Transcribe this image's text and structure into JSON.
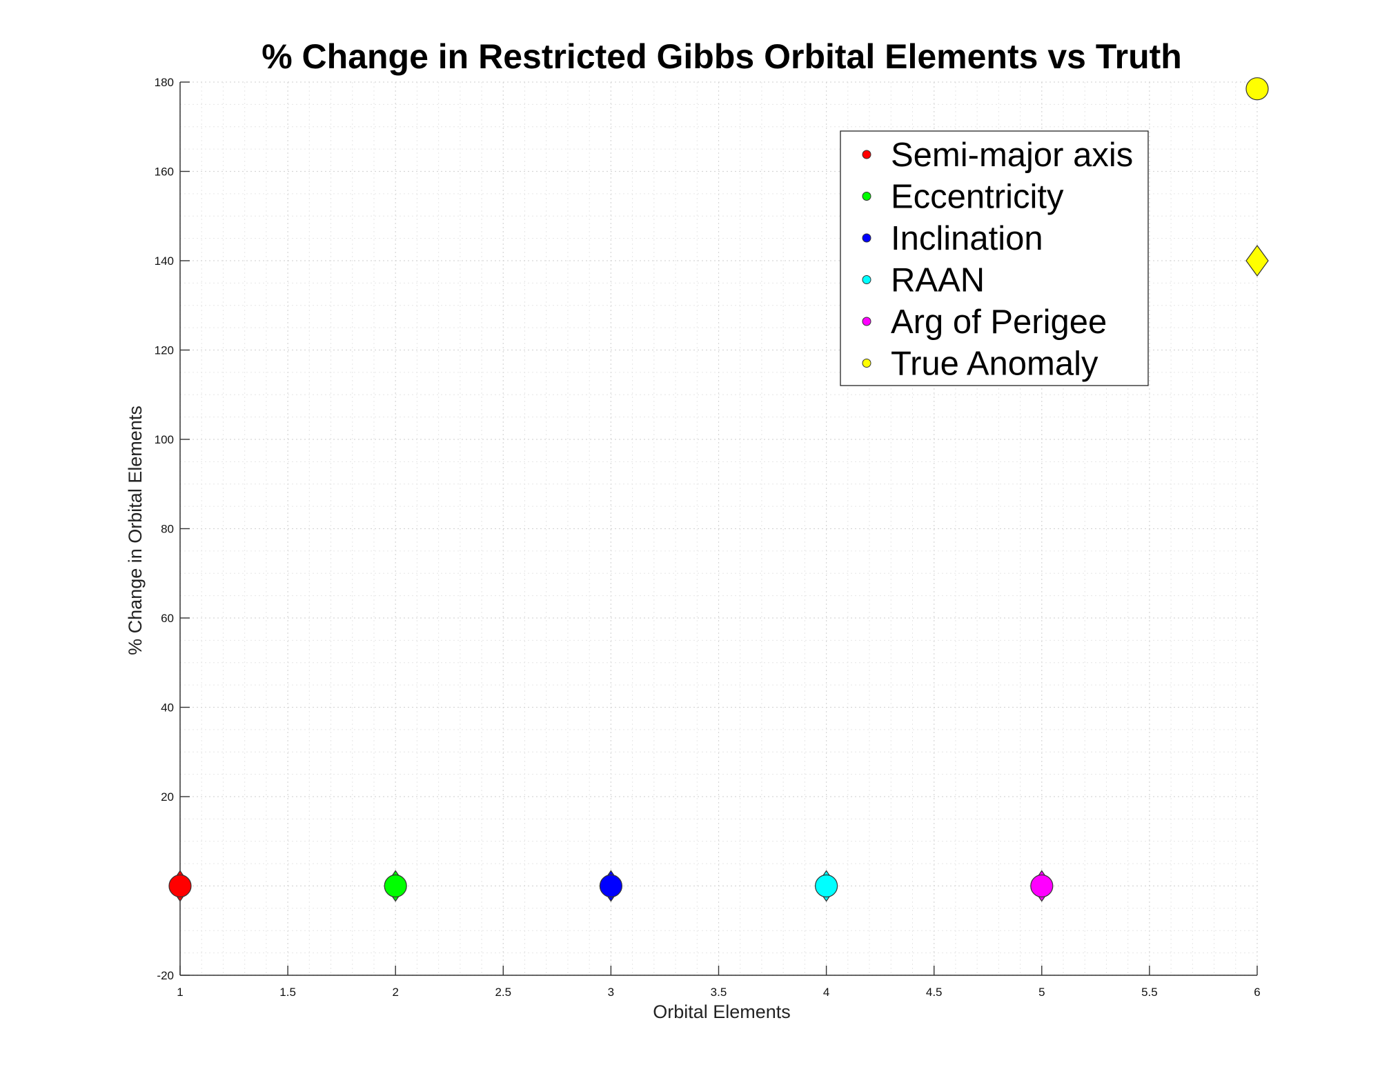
{
  "chart_data": {
    "type": "scatter",
    "title": "% Change in Restricted Gibbs Orbital Elements vs Truth",
    "xlabel": "Orbital Elements",
    "ylabel": "% Change in Orbital Elements",
    "xlim": [
      1,
      6
    ],
    "ylim": [
      -20,
      180
    ],
    "xticks": [
      "1",
      "1.5",
      "2",
      "2.5",
      "3",
      "3.5",
      "4",
      "4.5",
      "5",
      "5.5",
      "6"
    ],
    "yticks": [
      "-20",
      "20",
      "40",
      "60",
      "80",
      "100",
      "120",
      "140",
      "160",
      "180"
    ],
    "grid": true,
    "minor_grid": true,
    "legend_placement": "top-right",
    "series": [
      {
        "name": "Semi-major axis",
        "color": "#ff0000",
        "circle": {
          "x": 1,
          "y": 0
        },
        "diamond": {
          "x": 1,
          "y": 0
        }
      },
      {
        "name": "Eccentricity",
        "color": "#00ff00",
        "circle": {
          "x": 2,
          "y": 0
        },
        "diamond": {
          "x": 2,
          "y": 0
        }
      },
      {
        "name": "Inclination",
        "color": "#0000ff",
        "circle": {
          "x": 3,
          "y": 0
        },
        "diamond": {
          "x": 3,
          "y": 0
        }
      },
      {
        "name": "RAAN",
        "color": "#00ffff",
        "circle": {
          "x": 4,
          "y": 0
        },
        "diamond": {
          "x": 4,
          "y": 0
        }
      },
      {
        "name": "Arg of Perigee",
        "color": "#ff00ff",
        "circle": {
          "x": 5,
          "y": 0
        },
        "diamond": {
          "x": 5,
          "y": 0
        }
      },
      {
        "name": "True Anomaly",
        "color": "#ffff00",
        "circle": {
          "x": 6,
          "y": 178.5
        },
        "diamond": {
          "x": 6,
          "y": 140
        }
      }
    ]
  }
}
